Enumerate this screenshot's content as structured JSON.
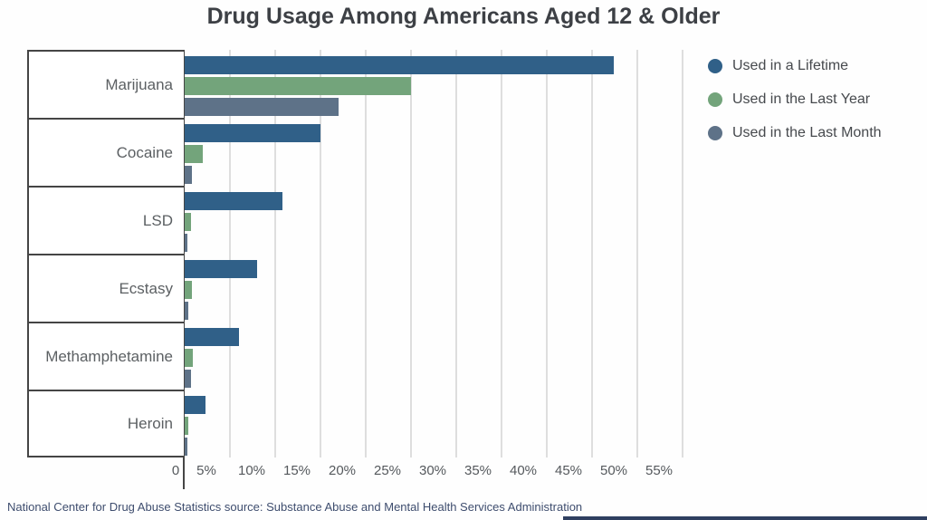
{
  "title": "Drug Usage Among Americans Aged 12 & Older",
  "legend": [
    {
      "label": "Used in a Lifetime",
      "color": "#306088"
    },
    {
      "label": "Used in the Last Year",
      "color": "#73a47b"
    },
    {
      "label": "Used in the Last Month",
      "color": "#5e7288"
    }
  ],
  "chart_data": {
    "type": "bar",
    "orientation": "horizontal",
    "title": "Drug Usage Among Americans Aged 12 & Older",
    "categories": [
      "Marijuana",
      "Cocaine",
      "LSD",
      "Ecstasy",
      "Methamphetamine",
      "Heroin"
    ],
    "series": [
      {
        "name": "Used in a Lifetime",
        "color": "#306088",
        "values": [
          47.4,
          15.0,
          10.8,
          8.0,
          6.0,
          2.3
        ]
      },
      {
        "name": "Used in the Last Year",
        "color": "#73a47b",
        "values": [
          25.0,
          2.0,
          0.7,
          0.8,
          0.9,
          0.4
        ]
      },
      {
        "name": "Used in the Last Month",
        "color": "#5e7288",
        "values": [
          17.0,
          0.8,
          0.3,
          0.4,
          0.7,
          0.3
        ]
      }
    ],
    "value_unit": "%",
    "xlabel": "",
    "ylabel": "",
    "tick_labels": [
      "0",
      "5%",
      "10%",
      "15%",
      "20%",
      "25%",
      "30%",
      "35%",
      "40%",
      "45%",
      "50%",
      "55%"
    ],
    "xlim": [
      0,
      56.5
    ],
    "grid": "vertical",
    "legend_position": "top-right"
  },
  "footer": {
    "text": "National Center for Drug Abuse Statistics source: Substance Abuse and Mental Health Services Administration"
  },
  "colors": {
    "background": "#fefefe",
    "axis": "#454545",
    "gridline": "#dedede",
    "title_text": "#3d4045",
    "category_text": "#5c6063",
    "tick_text": "#55595d",
    "legend_text": "#46494d",
    "footer_text": "#3e4d6e",
    "footer_rule": "#2f3f60"
  }
}
